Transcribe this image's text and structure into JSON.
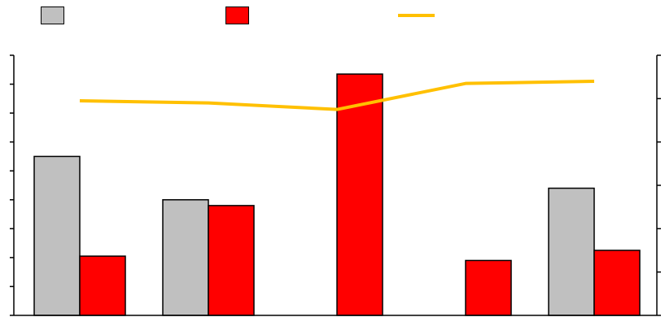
{
  "chart_data": {
    "type": "bar",
    "categories": [
      "",
      "",
      "",
      "",
      ""
    ],
    "series": [
      {
        "kind": "bar",
        "axis": "left",
        "color": "#c0c0c0",
        "values": [
          5.5,
          4.0,
          0,
          0,
          4.4
        ]
      },
      {
        "kind": "bar",
        "axis": "left",
        "color": "#ff0000",
        "values": [
          2.05,
          3.8,
          8.35,
          1.9,
          2.25
        ]
      },
      {
        "kind": "line",
        "axis": "right",
        "color": "#ffc000",
        "values": [
          4.95,
          4.9,
          4.75,
          5.35,
          5.4
        ]
      }
    ],
    "ylim_left": [
      0,
      9
    ],
    "ylim_right": [
      0,
      6
    ],
    "grid": false,
    "legend": "top"
  }
}
